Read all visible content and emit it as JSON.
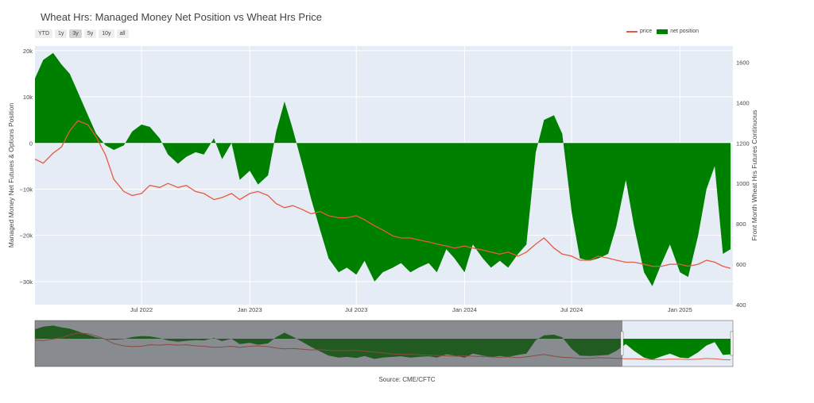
{
  "chart_data": {
    "type": "area",
    "title": "Wheat Hrs: Managed Money Net Position vs Wheat Hrs Price",
    "ylabel": "Managed Money Net Futures & Options Position",
    "y2label": "Front Month Wheat Hrs Futures Continuous",
    "ylim": [
      -35000,
      21000
    ],
    "y2lim": [
      400,
      1680
    ],
    "xlim": [
      "2022-01-01",
      "2025-04-01"
    ],
    "yticks": [
      20000,
      10000,
      0,
      -10000,
      -20000,
      -30000
    ],
    "ytick_labels": [
      "20k",
      "10k",
      "0",
      "−10k",
      "−20k",
      "−30k"
    ],
    "y2ticks": [
      1600,
      1400,
      1200,
      1000,
      800,
      600,
      400
    ],
    "y2tick_labels": [
      "1600",
      "1400",
      "1200",
      "1000",
      "800",
      "600",
      "400"
    ],
    "xticks": [
      "2022-07-01",
      "2023-01-01",
      "2023-07-01",
      "2024-01-01",
      "2024-07-01",
      "2025-01-01"
    ],
    "xtick_labels": [
      "Jul 2022",
      "Jan 2023",
      "Jul 2023",
      "Jan 2024",
      "Jul 2024",
      "Jan 2025"
    ],
    "grid": true,
    "legend_position": "top-right",
    "series": [
      {
        "name": "net position",
        "color": "#008000",
        "axis": "left",
        "x": [
          "2022-01-01",
          "2022-01-15",
          "2022-02-01",
          "2022-02-15",
          "2022-03-01",
          "2022-03-15",
          "2022-04-01",
          "2022-04-15",
          "2022-05-01",
          "2022-05-15",
          "2022-06-01",
          "2022-06-15",
          "2022-07-01",
          "2022-07-15",
          "2022-08-01",
          "2022-08-15",
          "2022-09-01",
          "2022-09-15",
          "2022-10-01",
          "2022-10-15",
          "2022-11-01",
          "2022-11-15",
          "2022-12-01",
          "2022-12-15",
          "2023-01-01",
          "2023-01-15",
          "2023-02-01",
          "2023-02-15",
          "2023-03-01",
          "2023-03-15",
          "2023-04-01",
          "2023-04-15",
          "2023-05-01",
          "2023-05-15",
          "2023-06-01",
          "2023-06-15",
          "2023-07-01",
          "2023-07-15",
          "2023-08-01",
          "2023-08-15",
          "2023-09-01",
          "2023-09-15",
          "2023-10-01",
          "2023-10-15",
          "2023-11-01",
          "2023-11-15",
          "2023-12-01",
          "2023-12-15",
          "2024-01-01",
          "2024-01-15",
          "2024-02-01",
          "2024-02-15",
          "2024-03-01",
          "2024-03-15",
          "2024-04-01",
          "2024-04-15",
          "2024-05-01",
          "2024-05-15",
          "2024-06-01",
          "2024-06-15",
          "2024-07-01",
          "2024-07-15",
          "2024-08-01",
          "2024-08-15",
          "2024-09-01",
          "2024-09-15",
          "2024-10-01",
          "2024-10-15",
          "2024-11-01",
          "2024-11-15",
          "2024-12-01",
          "2024-12-15",
          "2025-01-01",
          "2025-01-15",
          "2025-02-01",
          "2025-02-15",
          "2025-03-01",
          "2025-03-15",
          "2025-03-28"
        ],
        "values": [
          14000,
          18000,
          19500,
          17000,
          15000,
          11000,
          6000,
          2000,
          -500,
          -1500,
          -500,
          2500,
          4000,
          3500,
          1000,
          -2500,
          -4500,
          -3000,
          -2000,
          -2500,
          1000,
          -3500,
          0,
          -8000,
          -6000,
          -9000,
          -7000,
          2500,
          9000,
          3000,
          -5000,
          -12000,
          -19000,
          -25000,
          -28000,
          -27000,
          -28500,
          -25500,
          -30000,
          -28000,
          -27000,
          -26000,
          -28000,
          -27000,
          -26000,
          -28000,
          -23000,
          -25000,
          -28000,
          -22000,
          -25000,
          -27000,
          -25500,
          -27000,
          -24000,
          -22000,
          -2000,
          5000,
          6000,
          2000,
          -15000,
          -25000,
          -25500,
          -25000,
          -24000,
          -18000,
          -8000,
          -18000,
          -28000,
          -31000,
          -26000,
          -22000,
          -28000,
          -29000,
          -20000,
          -10000,
          -5000,
          -24000,
          -23000
        ]
      },
      {
        "name": "price",
        "color": "#e8593f",
        "axis": "right",
        "x": [
          "2022-01-01",
          "2022-01-15",
          "2022-02-01",
          "2022-02-15",
          "2022-03-01",
          "2022-03-15",
          "2022-04-01",
          "2022-04-15",
          "2022-05-01",
          "2022-05-15",
          "2022-06-01",
          "2022-06-15",
          "2022-07-01",
          "2022-07-15",
          "2022-08-01",
          "2022-08-15",
          "2022-09-01",
          "2022-09-15",
          "2022-10-01",
          "2022-10-15",
          "2022-11-01",
          "2022-11-15",
          "2022-12-01",
          "2022-12-15",
          "2023-01-01",
          "2023-01-15",
          "2023-02-01",
          "2023-02-15",
          "2023-03-01",
          "2023-03-15",
          "2023-04-01",
          "2023-04-15",
          "2023-05-01",
          "2023-05-15",
          "2023-06-01",
          "2023-06-15",
          "2023-07-01",
          "2023-07-15",
          "2023-08-01",
          "2023-08-15",
          "2023-09-01",
          "2023-09-15",
          "2023-10-01",
          "2023-10-15",
          "2023-11-01",
          "2023-11-15",
          "2023-12-01",
          "2023-12-15",
          "2024-01-01",
          "2024-01-15",
          "2024-02-01",
          "2024-02-15",
          "2024-03-01",
          "2024-03-15",
          "2024-04-01",
          "2024-04-15",
          "2024-05-01",
          "2024-05-15",
          "2024-06-01",
          "2024-06-15",
          "2024-07-01",
          "2024-07-15",
          "2024-08-01",
          "2024-08-15",
          "2024-09-01",
          "2024-09-15",
          "2024-10-01",
          "2024-10-15",
          "2024-11-01",
          "2024-11-15",
          "2024-12-01",
          "2024-12-15",
          "2025-01-01",
          "2025-01-15",
          "2025-02-01",
          "2025-02-15",
          "2025-03-01",
          "2025-03-15",
          "2025-03-28"
        ],
        "values": [
          1120,
          1100,
          1150,
          1180,
          1260,
          1310,
          1290,
          1230,
          1140,
          1020,
          960,
          940,
          950,
          990,
          980,
          1000,
          980,
          990,
          960,
          950,
          920,
          930,
          950,
          920,
          950,
          960,
          940,
          900,
          880,
          890,
          870,
          850,
          860,
          840,
          830,
          830,
          840,
          820,
          790,
          770,
          740,
          730,
          730,
          720,
          710,
          700,
          690,
          680,
          690,
          680,
          670,
          660,
          650,
          660,
          640,
          660,
          700,
          730,
          680,
          650,
          640,
          620,
          620,
          640,
          630,
          620,
          610,
          610,
          600,
          590,
          590,
          600,
          600,
          590,
          600,
          620,
          610,
          590,
          580
        ]
      }
    ],
    "source": "Source: CME/CFTC"
  },
  "toolbar": {
    "range_buttons": [
      "YTD",
      "1y",
      "3y",
      "5y",
      "10y",
      "all"
    ],
    "active": "3y"
  }
}
